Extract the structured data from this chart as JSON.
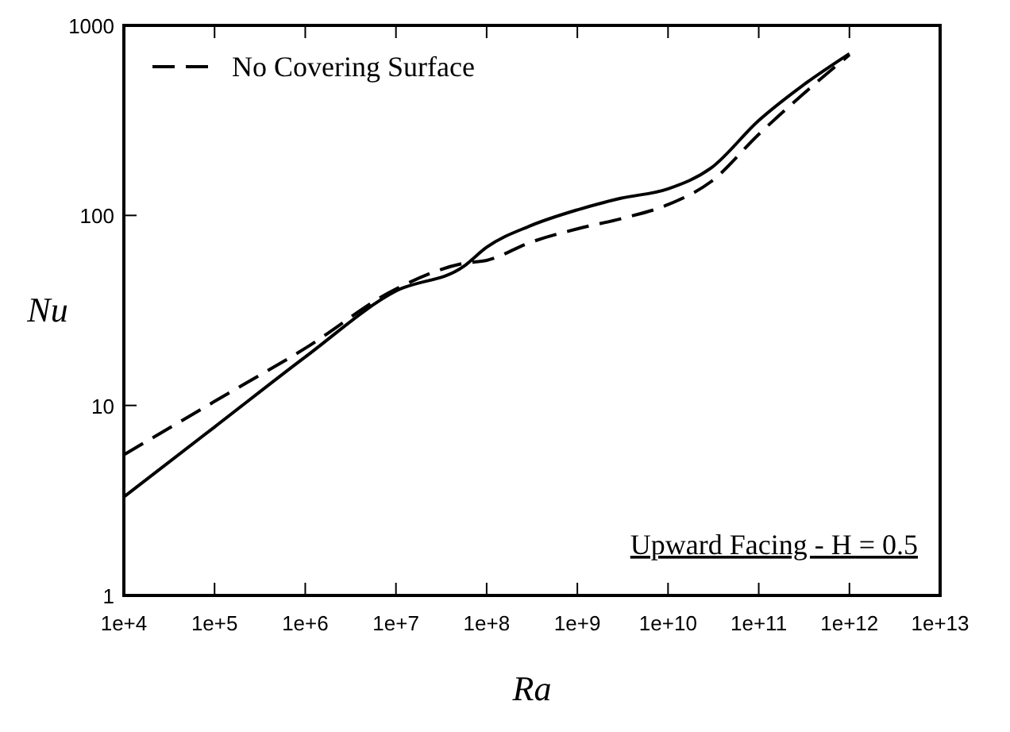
{
  "chart_data": {
    "type": "line",
    "xlabel": "Ra",
    "ylabel": "Nu",
    "log": "xy",
    "xlim": [
      10000,
      10000000000000
    ],
    "ylim": [
      1,
      1000
    ],
    "xticks": [
      {
        "value": 10000,
        "label": "1e+4"
      },
      {
        "value": 100000,
        "label": "1e+5"
      },
      {
        "value": 1000000,
        "label": "1e+6"
      },
      {
        "value": 10000000,
        "label": "1e+7"
      },
      {
        "value": 100000000,
        "label": "1e+8"
      },
      {
        "value": 1000000000,
        "label": "1e+9"
      },
      {
        "value": 10000000000,
        "label": "1e+10"
      },
      {
        "value": 100000000000,
        "label": "1e+11"
      },
      {
        "value": 1000000000000,
        "label": "1e+12"
      },
      {
        "value": 10000000000000,
        "label": "1e+13"
      }
    ],
    "yticks": [
      1,
      10,
      100,
      1000
    ],
    "series": [
      {
        "color": "#000000",
        "line_style": "solid",
        "x": [
          10000,
          100000,
          1000000,
          10000000,
          56000000,
          100000000,
          300000000,
          1000000000,
          3000000000,
          10000000000,
          30000000000,
          100000000000,
          300000000000,
          1000000000000
        ],
        "values": [
          3.3,
          7.7,
          18,
          40,
          54,
          68,
          88,
          107,
          123,
          138,
          178,
          316,
          480,
          710
        ]
      },
      {
        "name": "No Covering Surface",
        "color": "#000000",
        "line_style": "dashed",
        "x": [
          10000,
          100000,
          1000000,
          10000000,
          56000000,
          100000000,
          300000000,
          1000000000,
          3000000000,
          10000000000,
          30000000000,
          100000000000,
          300000000000,
          1000000000000
        ],
        "values": [
          5.5,
          10.5,
          20,
          41,
          56,
          58,
          72,
          85,
          96,
          114,
          151,
          267,
          430,
          700
        ]
      }
    ],
    "legend": "top left",
    "grid": false,
    "annotations": [
      "Upward Facing - H = 0.5"
    ]
  }
}
